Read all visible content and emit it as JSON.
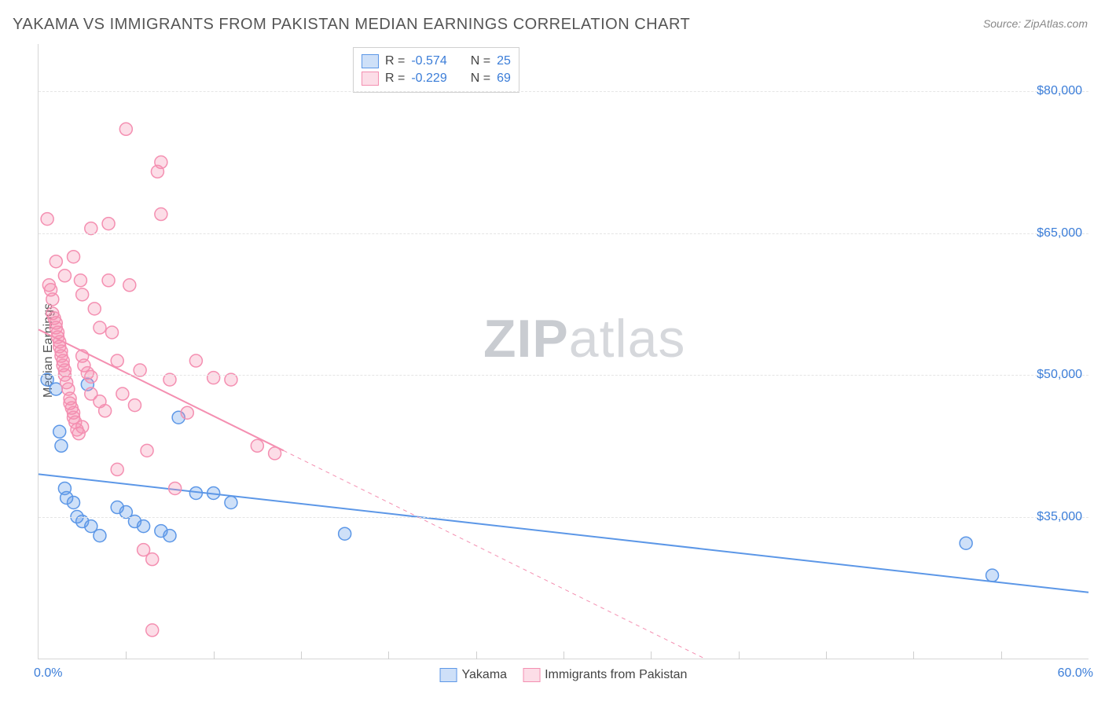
{
  "title": "YAKAMA VS IMMIGRANTS FROM PAKISTAN MEDIAN EARNINGS CORRELATION CHART",
  "source": "Source: ZipAtlas.com",
  "ylabel": "Median Earnings",
  "watermark_a": "ZIP",
  "watermark_b": "atlas",
  "chart": {
    "type": "scatter",
    "x_domain": [
      0,
      60
    ],
    "y_domain": [
      20000,
      85000
    ],
    "x_tick_step": 5,
    "x_start_label": "0.0%",
    "x_end_label": "60.0%",
    "y_ticks": [
      35000,
      50000,
      65000,
      80000
    ],
    "y_tick_labels": [
      "$35,000",
      "$50,000",
      "$65,000",
      "$80,000"
    ],
    "grid_color": "#e5e5e5",
    "axis_color": "#d6d6d6",
    "tick_label_color": "#3b7dd8",
    "background": "#ffffff",
    "marker_radius": 8,
    "marker_stroke_width": 1.5,
    "line_width": 2
  },
  "series": [
    {
      "name": "Yakama",
      "label": "Yakama",
      "color_fill": "rgba(92,151,231,0.30)",
      "color_stroke": "#5c97e7",
      "r": "-0.574",
      "n": "25",
      "trend": {
        "x1": 0,
        "y1": 39500,
        "x2": 60,
        "y2": 27000,
        "extrapolate_from_x": 0
      },
      "points": [
        [
          0.5,
          49500
        ],
        [
          1.0,
          48500
        ],
        [
          1.2,
          44000
        ],
        [
          1.3,
          42500
        ],
        [
          1.5,
          38000
        ],
        [
          1.6,
          37000
        ],
        [
          2.0,
          36500
        ],
        [
          2.2,
          35000
        ],
        [
          2.5,
          34500
        ],
        [
          3.0,
          34000
        ],
        [
          3.5,
          33000
        ],
        [
          4.5,
          36000
        ],
        [
          5.0,
          35500
        ],
        [
          5.5,
          34500
        ],
        [
          6.0,
          34000
        ],
        [
          7.0,
          33500
        ],
        [
          7.5,
          33000
        ],
        [
          8.0,
          45500
        ],
        [
          9.0,
          37500
        ],
        [
          10.0,
          37500
        ],
        [
          11.0,
          36500
        ],
        [
          17.5,
          33200
        ],
        [
          53.0,
          32200
        ],
        [
          54.5,
          28800
        ],
        [
          2.8,
          49000
        ]
      ]
    },
    {
      "name": "Pakistan",
      "label": "Immigrants from Pakistan",
      "color_fill": "rgba(244,143,177,0.30)",
      "color_stroke": "#f48fb1",
      "r": "-0.229",
      "n": "69",
      "trend": {
        "x1": 0,
        "y1": 54800,
        "x2": 14,
        "y2": 42000,
        "extrapolate_from_x": 14
      },
      "points": [
        [
          0.5,
          66500
        ],
        [
          0.6,
          59500
        ],
        [
          0.7,
          59000
        ],
        [
          0.8,
          58000
        ],
        [
          0.8,
          56500
        ],
        [
          0.9,
          56000
        ],
        [
          1.0,
          55500
        ],
        [
          1.0,
          55000
        ],
        [
          1.1,
          54500
        ],
        [
          1.1,
          54000
        ],
        [
          1.2,
          53500
        ],
        [
          1.2,
          53000
        ],
        [
          1.3,
          52500
        ],
        [
          1.3,
          52000
        ],
        [
          1.4,
          51500
        ],
        [
          1.4,
          51000
        ],
        [
          1.5,
          50500
        ],
        [
          1.5,
          50000
        ],
        [
          1.6,
          49200
        ],
        [
          1.7,
          48500
        ],
        [
          1.8,
          47500
        ],
        [
          1.8,
          47000
        ],
        [
          1.9,
          46500
        ],
        [
          2.0,
          46000
        ],
        [
          2.0,
          45500
        ],
        [
          2.1,
          45000
        ],
        [
          2.2,
          44200
        ],
        [
          2.3,
          43800
        ],
        [
          2.4,
          60000
        ],
        [
          2.5,
          58500
        ],
        [
          2.5,
          52000
        ],
        [
          2.6,
          51000
        ],
        [
          2.8,
          50200
        ],
        [
          3.0,
          49800
        ],
        [
          3.0,
          48000
        ],
        [
          3.2,
          57000
        ],
        [
          3.5,
          55000
        ],
        [
          3.5,
          47200
        ],
        [
          3.8,
          46200
        ],
        [
          4.0,
          60000
        ],
        [
          4.2,
          54500
        ],
        [
          4.5,
          51500
        ],
        [
          4.5,
          40000
        ],
        [
          4.8,
          48000
        ],
        [
          5.0,
          76000
        ],
        [
          5.2,
          59500
        ],
        [
          5.5,
          46800
        ],
        [
          5.8,
          50500
        ],
        [
          6.0,
          31500
        ],
        [
          6.2,
          42000
        ],
        [
          6.5,
          30500
        ],
        [
          6.5,
          23000
        ],
        [
          6.8,
          71500
        ],
        [
          7.0,
          72500
        ],
        [
          7.0,
          67000
        ],
        [
          7.5,
          49500
        ],
        [
          7.8,
          38000
        ],
        [
          8.5,
          46000
        ],
        [
          9.0,
          51500
        ],
        [
          10.0,
          49700
        ],
        [
          11.0,
          49500
        ],
        [
          12.5,
          42500
        ],
        [
          13.5,
          41700
        ],
        [
          1.0,
          62000
        ],
        [
          1.5,
          60500
        ],
        [
          4.0,
          66000
        ],
        [
          3.0,
          65500
        ],
        [
          2.0,
          62500
        ],
        [
          2.5,
          44500
        ]
      ]
    }
  ],
  "stats_box": {
    "r_label": "R =",
    "n_label": "N ="
  }
}
